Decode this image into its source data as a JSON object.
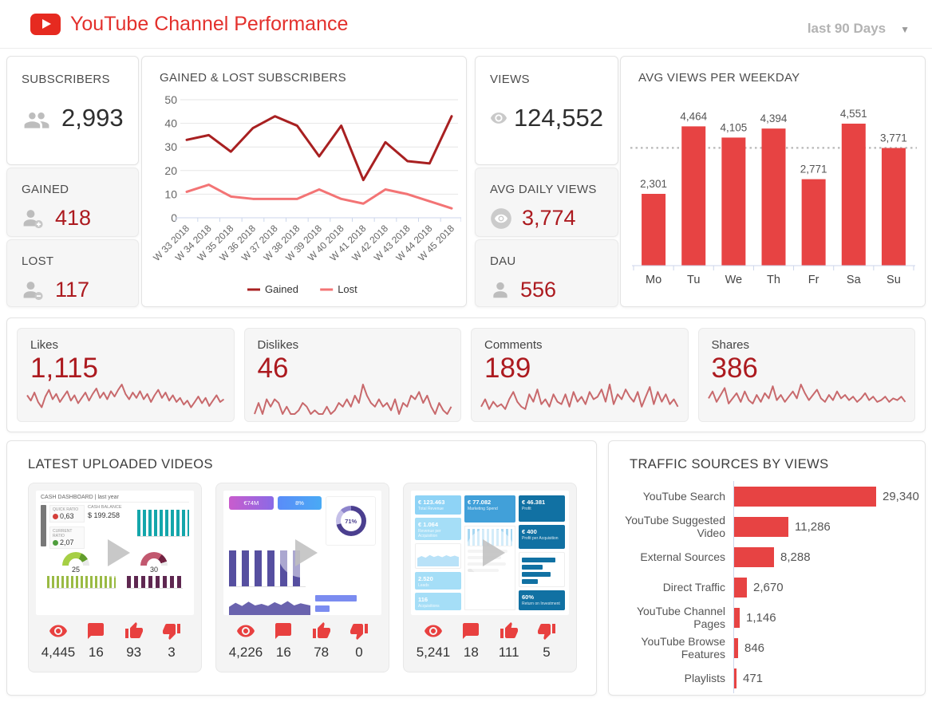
{
  "header": {
    "title": "YouTube Channel Performance",
    "period": "last 90 Days"
  },
  "colors": {
    "brand_red": "#e3302c",
    "bar_red": "#e74343",
    "kpi_red": "#ac1a1f",
    "gained_line": "#a82021",
    "lost_line": "#f37475",
    "spark_red": "#c8696c",
    "axis": "#ccd6eb",
    "grid": "#e6e6e6"
  },
  "kpis": {
    "subscribers": {
      "label": "SUBSCRIBERS",
      "value": "2,993"
    },
    "gained": {
      "label": "GAINED",
      "value": "418"
    },
    "lost": {
      "label": "LOST",
      "value": "117"
    },
    "views": {
      "label": "VIEWS",
      "value": "124,552"
    },
    "avg_daily_views": {
      "label": "AVG DAILY VIEWS",
      "value": "3,774"
    },
    "dau": {
      "label": "DAU",
      "value": "556"
    }
  },
  "engagement": [
    {
      "label": "Likes",
      "value": "1,115"
    },
    {
      "label": "Dislikes",
      "value": "46"
    },
    {
      "label": "Comments",
      "value": "189"
    },
    {
      "label": "Shares",
      "value": "386"
    }
  ],
  "videos": {
    "title": "LATEST UPLOADED VIDEOS",
    "items": [
      {
        "stats": {
          "views": "4,445",
          "comments": "16",
          "likes": "93",
          "dislikes": "3"
        },
        "thumb": {
          "title": "CASH DASHBOARD | last year",
          "kpi1_label": "QUICK RATIO",
          "kpi1": "0,63",
          "kpi2_label": "CURRENT RATIO",
          "kpi2": "2,07",
          "balance_label": "CASH BALANCE",
          "balance": "$ 199.258",
          "gauge1": "25",
          "gauge2": "30"
        }
      },
      {
        "stats": {
          "views": "4,226",
          "comments": "16",
          "likes": "78",
          "dislikes": "0"
        },
        "thumb": {
          "badge1": "€74M",
          "badge2": "8%",
          "donut": "71%"
        }
      },
      {
        "stats": {
          "views": "5,241",
          "comments": "18",
          "likes": "111",
          "dislikes": "5"
        },
        "thumb": {
          "tile1": "€ 123.463",
          "tile1_sub": "Total Revenue",
          "tile2": "€ 77.082",
          "tile2_sub": "Marketing Spend",
          "tile3": "€ 46.381",
          "tile3_sub": "Profit",
          "tile4": "€ 1.064",
          "tile4_sub": "Revenue per Acquisition",
          "tile5": "€ 400",
          "tile5_sub": "Profit per Acquisition",
          "tile6": "2.520",
          "tile6_sub": "Leads",
          "tile7": "116",
          "tile7_sub": "Acquisitions",
          "tile8": "60%",
          "tile8_sub": "Return on Investment"
        }
      }
    ]
  },
  "chart_data": [
    {
      "type": "line",
      "title": "GAINED & LOST SUBSCRIBERS",
      "categories": [
        "W 33 2018",
        "W 34 2018",
        "W 35 2018",
        "W 36 2018",
        "W 37 2018",
        "W 38 2018",
        "W 39 2018",
        "W 40 2018",
        "W 41 2018",
        "W 42 2018",
        "W 43 2018",
        "W 44 2018",
        "W 45 2018"
      ],
      "series": [
        {
          "name": "Gained",
          "color": "#a82021",
          "values": [
            33,
            35,
            28,
            38,
            43,
            39,
            26,
            39,
            16,
            32,
            24,
            23,
            43
          ]
        },
        {
          "name": "Lost",
          "color": "#f37475",
          "values": [
            11,
            14,
            9,
            8,
            8,
            8,
            12,
            8,
            6,
            12,
            10,
            7,
            4
          ]
        }
      ],
      "ylim": [
        0,
        50
      ],
      "yticks": [
        0,
        10,
        20,
        30,
        40,
        50
      ],
      "grid": true,
      "legend_position": "bottom"
    },
    {
      "type": "bar",
      "title": "AVG VIEWS PER WEEKDAY",
      "categories": [
        "Mo",
        "Tu",
        "We",
        "Th",
        "Fr",
        "Sa",
        "Su"
      ],
      "values": [
        2301,
        4464,
        4105,
        4394,
        2771,
        4551,
        3771
      ],
      "value_labels": [
        "2,301",
        "4,464",
        "4,105",
        "4,394",
        "2,771",
        "4,551",
        "3,771"
      ],
      "avg_line": 3774,
      "bar_color": "#e74343",
      "ylim": [
        0,
        5000
      ],
      "grid": false
    },
    {
      "type": "line",
      "subtype": "sparkline",
      "name": "Likes",
      "color": "#c8696c",
      "values": [
        14,
        10,
        16,
        9,
        5,
        13,
        18,
        11,
        15,
        9,
        13,
        17,
        10,
        14,
        8,
        12,
        16,
        10,
        15,
        19,
        12,
        16,
        11,
        17,
        13,
        18,
        22,
        15,
        11,
        16,
        12,
        17,
        11,
        15,
        9,
        14,
        18,
        12,
        16,
        10,
        14,
        9,
        12,
        7,
        10,
        5,
        9,
        13,
        8,
        12,
        6,
        10,
        14,
        9,
        11
      ]
    },
    {
      "type": "line",
      "subtype": "sparkline",
      "name": "Dislikes",
      "color": "#c8696c",
      "values": [
        0,
        3,
        0,
        4,
        2,
        4,
        3,
        0,
        2,
        0,
        0,
        1,
        3,
        2,
        0,
        1,
        0,
        0,
        2,
        0,
        1,
        3,
        2,
        4,
        2,
        5,
        3,
        8,
        5,
        3,
        2,
        4,
        2,
        3,
        1,
        4,
        0,
        3,
        2,
        5,
        4,
        6,
        3,
        5,
        2,
        0,
        3,
        1,
        0,
        2
      ]
    },
    {
      "type": "line",
      "subtype": "sparkline",
      "name": "Comments",
      "color": "#c8696c",
      "values": [
        3,
        6,
        2,
        5,
        3,
        4,
        2,
        6,
        9,
        5,
        3,
        2,
        8,
        5,
        10,
        4,
        6,
        3,
        8,
        5,
        4,
        8,
        3,
        9,
        5,
        7,
        4,
        9,
        6,
        7,
        10,
        5,
        12,
        4,
        8,
        6,
        10,
        7,
        5,
        9,
        3,
        7,
        11,
        4,
        9,
        5,
        8,
        4,
        6,
        3
      ]
    },
    {
      "type": "line",
      "subtype": "sparkline",
      "name": "Shares",
      "color": "#c8696c",
      "values": [
        9,
        13,
        7,
        11,
        15,
        6,
        9,
        12,
        7,
        13,
        8,
        6,
        11,
        7,
        12,
        9,
        16,
        8,
        11,
        7,
        10,
        13,
        9,
        17,
        12,
        8,
        11,
        14,
        9,
        7,
        11,
        8,
        13,
        9,
        11,
        8,
        10,
        7,
        9,
        12,
        8,
        10,
        7,
        8,
        10,
        7,
        9,
        8,
        10,
        7
      ]
    },
    {
      "type": "bar",
      "subtype": "horizontal",
      "title": "TRAFFIC SOURCES BY VIEWS",
      "categories": [
        "YouTube Search",
        "YouTube Suggested Video",
        "External Sources",
        "Direct Traffic",
        "YouTube Channel Pages",
        "YouTube Browse Features",
        "Playlists"
      ],
      "values": [
        29340,
        11286,
        8288,
        2670,
        1146,
        846,
        471
      ],
      "value_labels": [
        "29,340",
        "11,286",
        "8,288",
        "2,670",
        "1,146",
        "846",
        "471"
      ],
      "bar_color": "#e74343",
      "xlim": [
        0,
        29340
      ]
    }
  ]
}
